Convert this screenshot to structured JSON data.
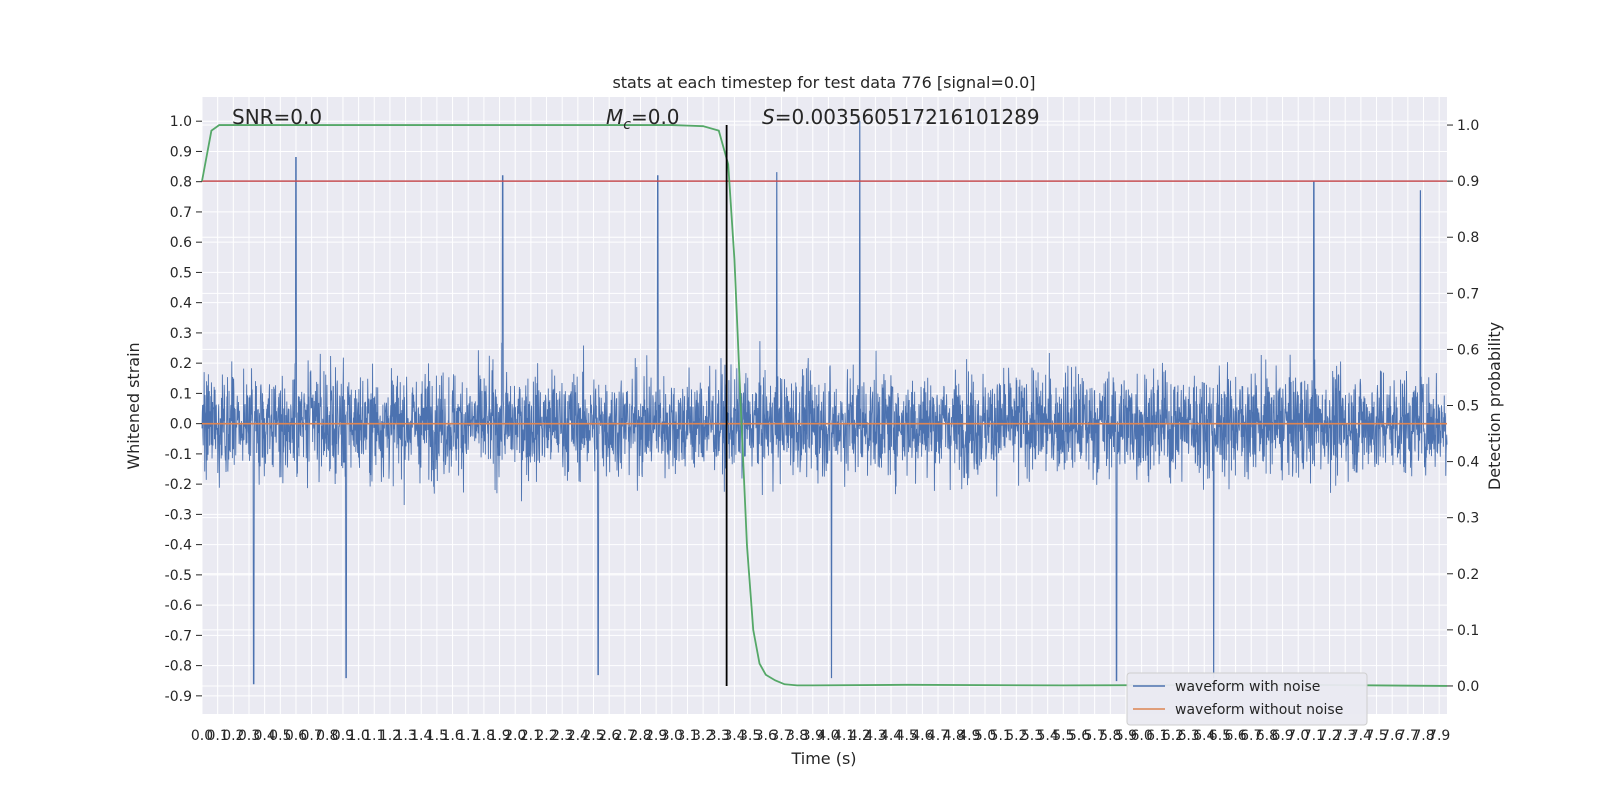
{
  "chart_data": {
    "type": "line",
    "title": "stats at each timestep for test data 776 [signal=0.0]",
    "xlabel": "Time (s)",
    "ylabel": "Whitened strain",
    "y2label": "Detection probability",
    "xlim": [
      0.0,
      7.95
    ],
    "ylim": [
      -0.96,
      1.08
    ],
    "y2lim": [
      -0.05,
      1.05
    ],
    "xticks_step": 0.1,
    "xticks_max": 7.9,
    "yticks": [
      -0.9,
      -0.8,
      -0.7,
      -0.6,
      -0.5,
      -0.4,
      -0.3,
      -0.2,
      -0.1,
      0.0,
      0.1,
      0.2,
      0.3,
      0.4,
      0.5,
      0.6,
      0.7,
      0.8,
      0.9,
      1.0
    ],
    "y2ticks": [
      0.0,
      0.1,
      0.2,
      0.3,
      0.4,
      0.5,
      0.6,
      0.7,
      0.8,
      0.9,
      1.0
    ],
    "grid": true,
    "legend_position": "lower-right",
    "annotations": {
      "snr": "SNR=0.0",
      "mc_symbol": "M",
      "mc_sub": "c",
      "mc_value": "=0.0",
      "s_symbol": "S",
      "s_value": "=0.003560517216101289"
    },
    "series": [
      {
        "name": "waveform with noise",
        "axis": "left",
        "color": "#4c72b0",
        "description": "dense noise, roughly within -0.85 to 1.0, peaks at 0.88 (x≈0.6), 0.83 (x≈3.67), 1.0 (x≈4.2)",
        "samples": 4096,
        "envelope_peaks": [
          {
            "x": 0.6,
            "y": 0.88
          },
          {
            "x": 1.92,
            "y": 0.82
          },
          {
            "x": 2.91,
            "y": 0.82
          },
          {
            "x": 3.67,
            "y": 0.83
          },
          {
            "x": 4.2,
            "y": 1.0
          },
          {
            "x": 7.1,
            "y": 0.8
          },
          {
            "x": 7.78,
            "y": 0.77
          }
        ],
        "envelope_troughs": [
          {
            "x": 0.33,
            "y": -0.86
          },
          {
            "x": 0.92,
            "y": -0.84
          },
          {
            "x": 2.53,
            "y": -0.83
          },
          {
            "x": 4.02,
            "y": -0.84
          },
          {
            "x": 5.84,
            "y": -0.85
          },
          {
            "x": 6.46,
            "y": -0.84
          }
        ]
      },
      {
        "name": "waveform without noise",
        "axis": "left",
        "color": "#dd8452",
        "x": [
          0.0,
          7.95
        ],
        "y": [
          0.0,
          0.0
        ]
      },
      {
        "name": "detection probability",
        "axis": "right",
        "color": "#55a868",
        "x": [
          0.0,
          0.06,
          0.11,
          0.2,
          1.0,
          2.0,
          3.0,
          3.1,
          3.2,
          3.3,
          3.36,
          3.4,
          3.44,
          3.48,
          3.52,
          3.56,
          3.6,
          3.66,
          3.72,
          3.8,
          3.9,
          4.5,
          5.5,
          7.0,
          7.95
        ],
        "y": [
          0.9,
          0.99,
          1.0,
          1.0,
          1.0,
          1.0,
          1.0,
          0.999,
          0.998,
          0.99,
          0.93,
          0.76,
          0.5,
          0.25,
          0.1,
          0.04,
          0.02,
          0.01,
          0.003,
          0.001,
          0.001,
          0.002,
          0.001,
          0.002,
          0.0
        ]
      },
      {
        "name": "threshold",
        "axis": "right",
        "color": "#c44e52",
        "x": [
          0.0,
          7.95
        ],
        "y": [
          0.9,
          0.9
        ]
      }
    ],
    "vline": {
      "x": 3.35,
      "y2_from": 0.0,
      "y2_to": 1.0,
      "color": "#000000"
    },
    "colors": {
      "background": "#eaeaf2",
      "grid": "#ffffff",
      "noisy": "#4c72b0",
      "clean": "#dd8452",
      "probability": "#55a868",
      "threshold": "#c44e52"
    }
  }
}
